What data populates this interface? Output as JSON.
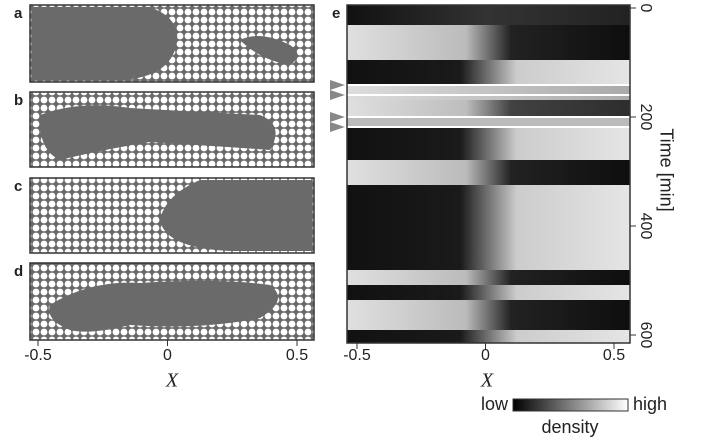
{
  "panel_labels": [
    "a",
    "b",
    "c",
    "d",
    "e"
  ],
  "snapshots_axis": {
    "xticks": [
      -0.5,
      0,
      0.5
    ],
    "xlabel": "X"
  },
  "kymograph": {
    "xticks": [
      -0.5,
      0,
      0.5
    ],
    "xlabel": "X",
    "yticks": [
      0,
      200,
      400,
      600
    ],
    "ylabel": "Time [min]"
  },
  "colorbar": {
    "low": "low",
    "label": "density",
    "high": "high"
  }
}
